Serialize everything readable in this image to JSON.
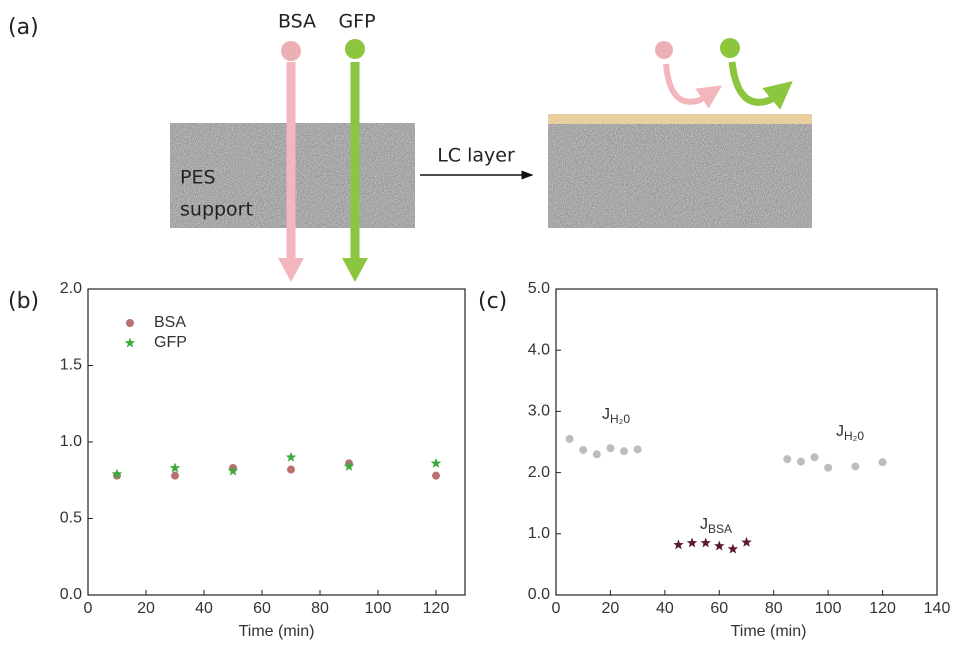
{
  "diagram": {
    "panel_label": "(a)",
    "particle_1": "BSA",
    "particle_2": "GFP",
    "support_line_1": "PES",
    "support_line_2": "support",
    "arrow_label": "LC layer"
  },
  "chart_data": [
    {
      "type": "scatter",
      "panel_label": "(b)",
      "x_label": "Time (min)",
      "xlim": [
        0,
        130
      ],
      "xticks": [
        0,
        20,
        40,
        60,
        80,
        100,
        120
      ],
      "ylim": [
        0,
        2
      ],
      "yticks": [
        {
          "value": 0,
          "label": "0.0"
        },
        {
          "value": 0.5,
          "label": "0.5"
        },
        {
          "value": 1,
          "label": "1.0"
        },
        {
          "value": 1.5,
          "label": "1.5"
        },
        {
          "value": 2,
          "label": "2.0"
        }
      ],
      "legend": "upper-left",
      "series": [
        {
          "name": "BSA",
          "color": "#b87070",
          "marker": "circle",
          "x": [
            10,
            30,
            50,
            70,
            90,
            120
          ],
          "values": [
            0.78,
            0.78,
            0.83,
            0.82,
            0.86,
            0.78
          ]
        },
        {
          "name": "GFP",
          "color": "#3caa3c",
          "marker": "star",
          "x": [
            10,
            30,
            50,
            70,
            90,
            120
          ],
          "values": [
            0.79,
            0.83,
            0.81,
            0.9,
            0.84,
            0.86
          ]
        }
      ]
    },
    {
      "type": "scatter",
      "panel_label": "(c)",
      "x_label": "Time (min)",
      "xlim": [
        0,
        140
      ],
      "xticks": [
        0,
        20,
        40,
        60,
        80,
        100,
        120,
        140
      ],
      "ylim": [
        0,
        5
      ],
      "yticks": [
        {
          "value": 0,
          "label": "0.0"
        },
        {
          "value": 1,
          "label": "1.0"
        },
        {
          "value": 2,
          "label": "2.0"
        },
        {
          "value": 3,
          "label": "3.0"
        },
        {
          "value": 4,
          "label": "4.0"
        },
        {
          "value": 5,
          "label": "5.0"
        }
      ],
      "series": [
        {
          "color": "#bdbdbd",
          "marker": "circle",
          "x": [
            5,
            10,
            15,
            20,
            25,
            30
          ],
          "values": [
            2.55,
            2.37,
            2.3,
            2.4,
            2.35,
            2.38
          ]
        },
        {
          "color": "#5a1a2e",
          "marker": "star",
          "x": [
            45,
            50,
            55,
            60,
            65,
            70
          ],
          "values": [
            0.82,
            0.85,
            0.85,
            0.8,
            0.75,
            0.86
          ]
        },
        {
          "color": "#bdbdbd",
          "marker": "circle",
          "x": [
            85,
            90,
            95,
            100,
            110,
            120
          ],
          "values": [
            2.22,
            2.18,
            2.25,
            2.08,
            2.1,
            2.17
          ]
        }
      ],
      "annotations": [
        {
          "base": "J",
          "sub": "H₂0"
        },
        {
          "base": "J",
          "sub": "BSA"
        },
        {
          "base": "J",
          "sub": "H₂0"
        }
      ]
    }
  ]
}
